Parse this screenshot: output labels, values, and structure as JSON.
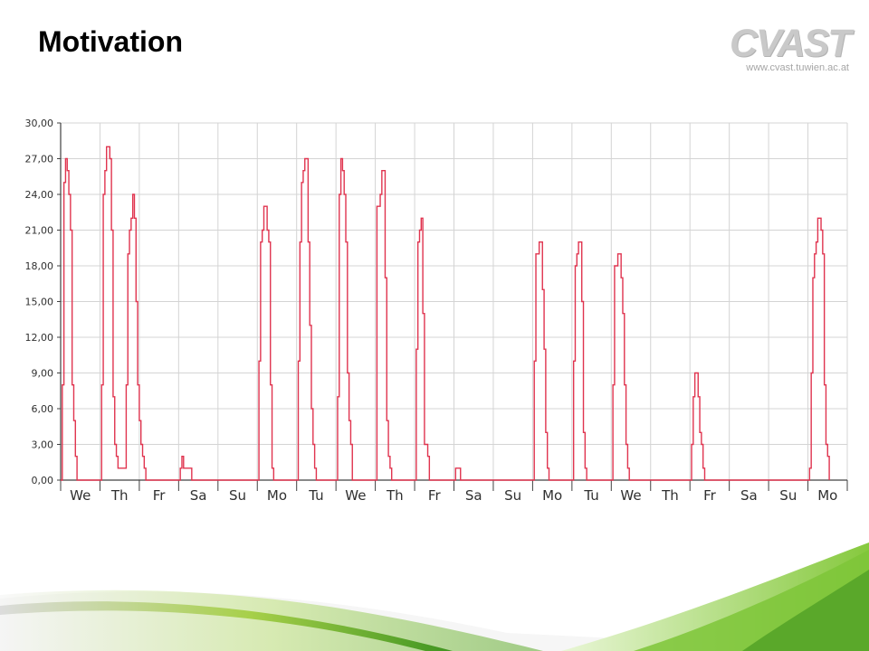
{
  "slide": {
    "title": "Motivation"
  },
  "logo": {
    "wordmark": "CVAST",
    "url": "www.cvast.tuwien.ac.at"
  },
  "colors": {
    "line": "#e0344f",
    "grid": "#d4d4d4",
    "axis": "#404040",
    "accent_green": "#7ec638"
  },
  "chart_data": {
    "type": "line",
    "title": "",
    "xlabel": "",
    "ylabel": "",
    "ylim": [
      0,
      30
    ],
    "grid": true,
    "legend": "none",
    "y_ticks": [
      "0,00",
      "3,00",
      "6,00",
      "9,00",
      "12,00",
      "15,00",
      "18,00",
      "21,00",
      "24,00",
      "27,00",
      "30,00"
    ],
    "x_ticks": [
      "We",
      "Th",
      "Fr",
      "Sa",
      "Su",
      "Mo",
      "Tu",
      "We",
      "Th",
      "Fr",
      "Sa",
      "Su",
      "Mo",
      "Tu",
      "We",
      "Th",
      "Fr",
      "Sa",
      "Su",
      "Mo"
    ],
    "x_unit": "hour since start of first day (day index = floor(x/24))",
    "series": [
      {
        "points": [
          [
            0,
            0
          ],
          [
            1,
            0
          ],
          [
            1,
            8
          ],
          [
            2,
            8
          ],
          [
            2,
            25
          ],
          [
            3,
            25
          ],
          [
            3,
            27
          ],
          [
            4,
            27
          ],
          [
            4,
            26
          ],
          [
            5,
            26
          ],
          [
            5,
            24
          ],
          [
            6,
            24
          ],
          [
            6,
            21
          ],
          [
            7,
            21
          ],
          [
            7,
            8
          ],
          [
            8,
            8
          ],
          [
            8,
            5
          ],
          [
            9,
            5
          ],
          [
            9,
            2
          ],
          [
            10,
            2
          ],
          [
            10,
            0
          ],
          [
            24,
            0
          ],
          [
            25,
            0
          ],
          [
            25,
            8
          ],
          [
            26,
            8
          ],
          [
            26,
            24
          ],
          [
            27,
            24
          ],
          [
            27,
            26
          ],
          [
            28,
            26
          ],
          [
            28,
            28
          ],
          [
            29,
            28
          ],
          [
            29,
            28
          ],
          [
            30,
            28
          ],
          [
            30,
            27
          ],
          [
            31,
            27
          ],
          [
            31,
            21
          ],
          [
            32,
            21
          ],
          [
            32,
            7
          ],
          [
            33,
            7
          ],
          [
            33,
            3
          ],
          [
            34,
            3
          ],
          [
            34,
            2
          ],
          [
            35,
            2
          ],
          [
            35,
            1
          ],
          [
            40,
            1
          ],
          [
            40,
            8
          ],
          [
            41,
            8
          ],
          [
            41,
            19
          ],
          [
            42,
            19
          ],
          [
            42,
            21
          ],
          [
            43,
            21
          ],
          [
            43,
            22
          ],
          [
            44,
            22
          ],
          [
            44,
            24
          ],
          [
            45,
            24
          ],
          [
            45,
            22
          ],
          [
            46,
            22
          ],
          [
            46,
            15
          ],
          [
            47,
            15
          ],
          [
            47,
            8
          ],
          [
            48,
            8
          ],
          [
            48,
            5
          ],
          [
            49,
            5
          ],
          [
            49,
            3
          ],
          [
            50,
            3
          ],
          [
            50,
            2
          ],
          [
            51,
            2
          ],
          [
            51,
            1
          ],
          [
            52,
            1
          ],
          [
            52,
            0
          ],
          [
            72,
            0
          ],
          [
            73,
            0
          ],
          [
            73,
            1
          ],
          [
            74,
            1
          ],
          [
            74,
            2
          ],
          [
            75,
            2
          ],
          [
            75,
            1
          ],
          [
            80,
            1
          ],
          [
            80,
            0
          ],
          [
            120,
            0
          ],
          [
            121,
            0
          ],
          [
            121,
            10
          ],
          [
            122,
            10
          ],
          [
            122,
            20
          ],
          [
            123,
            20
          ],
          [
            123,
            21
          ],
          [
            124,
            21
          ],
          [
            124,
            23
          ],
          [
            125,
            23
          ],
          [
            125,
            23
          ],
          [
            126,
            23
          ],
          [
            126,
            21
          ],
          [
            127,
            21
          ],
          [
            127,
            20
          ],
          [
            128,
            20
          ],
          [
            128,
            8
          ],
          [
            129,
            8
          ],
          [
            129,
            1
          ],
          [
            130,
            1
          ],
          [
            130,
            0
          ],
          [
            144,
            0
          ],
          [
            145,
            0
          ],
          [
            145,
            10
          ],
          [
            146,
            10
          ],
          [
            146,
            20
          ],
          [
            147,
            20
          ],
          [
            147,
            25
          ],
          [
            148,
            25
          ],
          [
            148,
            26
          ],
          [
            149,
            26
          ],
          [
            149,
            27
          ],
          [
            150,
            27
          ],
          [
            150,
            27
          ],
          [
            151,
            27
          ],
          [
            151,
            20
          ],
          [
            152,
            20
          ],
          [
            152,
            13
          ],
          [
            153,
            13
          ],
          [
            153,
            6
          ],
          [
            154,
            6
          ],
          [
            154,
            3
          ],
          [
            155,
            3
          ],
          [
            155,
            1
          ],
          [
            156,
            1
          ],
          [
            156,
            0
          ],
          [
            168,
            0
          ],
          [
            169,
            0
          ],
          [
            169,
            7
          ],
          [
            170,
            7
          ],
          [
            170,
            24
          ],
          [
            171,
            24
          ],
          [
            171,
            27
          ],
          [
            172,
            27
          ],
          [
            172,
            26
          ],
          [
            173,
            26
          ],
          [
            173,
            24
          ],
          [
            174,
            24
          ],
          [
            174,
            20
          ],
          [
            175,
            20
          ],
          [
            175,
            9
          ],
          [
            176,
            9
          ],
          [
            176,
            5
          ],
          [
            177,
            5
          ],
          [
            177,
            3
          ],
          [
            178,
            3
          ],
          [
            178,
            0
          ],
          [
            192,
            0
          ],
          [
            193,
            0
          ],
          [
            193,
            23
          ],
          [
            194,
            23
          ],
          [
            194,
            23
          ],
          [
            195,
            23
          ],
          [
            195,
            24
          ],
          [
            196,
            24
          ],
          [
            196,
            26
          ],
          [
            197,
            26
          ],
          [
            197,
            26
          ],
          [
            198,
            26
          ],
          [
            198,
            17
          ],
          [
            199,
            17
          ],
          [
            199,
            5
          ],
          [
            200,
            5
          ],
          [
            200,
            2
          ],
          [
            201,
            2
          ],
          [
            201,
            1
          ],
          [
            202,
            1
          ],
          [
            202,
            0
          ],
          [
            216,
            0
          ],
          [
            217,
            0
          ],
          [
            217,
            11
          ],
          [
            218,
            11
          ],
          [
            218,
            20
          ],
          [
            219,
            20
          ],
          [
            219,
            21
          ],
          [
            220,
            21
          ],
          [
            220,
            22
          ],
          [
            221,
            22
          ],
          [
            221,
            14
          ],
          [
            222,
            14
          ],
          [
            222,
            3
          ],
          [
            223,
            3
          ],
          [
            223,
            3
          ],
          [
            224,
            3
          ],
          [
            224,
            2
          ],
          [
            225,
            2
          ],
          [
            225,
            0
          ],
          [
            240,
            0
          ],
          [
            241,
            0
          ],
          [
            241,
            1
          ],
          [
            244,
            1
          ],
          [
            244,
            0
          ],
          [
            288,
            0
          ],
          [
            289,
            0
          ],
          [
            289,
            10
          ],
          [
            290,
            10
          ],
          [
            290,
            19
          ],
          [
            291,
            19
          ],
          [
            291,
            19
          ],
          [
            292,
            19
          ],
          [
            292,
            20
          ],
          [
            293,
            20
          ],
          [
            293,
            20
          ],
          [
            294,
            20
          ],
          [
            294,
            16
          ],
          [
            295,
            16
          ],
          [
            295,
            11
          ],
          [
            296,
            11
          ],
          [
            296,
            4
          ],
          [
            297,
            4
          ],
          [
            297,
            1
          ],
          [
            298,
            1
          ],
          [
            298,
            0
          ],
          [
            312,
            0
          ],
          [
            313,
            0
          ],
          [
            313,
            10
          ],
          [
            314,
            10
          ],
          [
            314,
            18
          ],
          [
            315,
            18
          ],
          [
            315,
            19
          ],
          [
            316,
            19
          ],
          [
            316,
            20
          ],
          [
            317,
            20
          ],
          [
            317,
            20
          ],
          [
            318,
            20
          ],
          [
            318,
            15
          ],
          [
            319,
            15
          ],
          [
            319,
            4
          ],
          [
            320,
            4
          ],
          [
            320,
            1
          ],
          [
            321,
            1
          ],
          [
            321,
            0
          ],
          [
            336,
            0
          ],
          [
            337,
            0
          ],
          [
            337,
            8
          ],
          [
            338,
            8
          ],
          [
            338,
            18
          ],
          [
            339,
            18
          ],
          [
            339,
            18
          ],
          [
            340,
            18
          ],
          [
            340,
            19
          ],
          [
            341,
            19
          ],
          [
            341,
            19
          ],
          [
            342,
            19
          ],
          [
            342,
            17
          ],
          [
            343,
            17
          ],
          [
            343,
            14
          ],
          [
            344,
            14
          ],
          [
            344,
            8
          ],
          [
            345,
            8
          ],
          [
            345,
            3
          ],
          [
            346,
            3
          ],
          [
            346,
            1
          ],
          [
            347,
            1
          ],
          [
            347,
            0
          ],
          [
            384,
            0
          ],
          [
            385,
            0
          ],
          [
            385,
            3
          ],
          [
            386,
            3
          ],
          [
            386,
            7
          ],
          [
            387,
            7
          ],
          [
            387,
            9
          ],
          [
            388,
            9
          ],
          [
            388,
            9
          ],
          [
            389,
            9
          ],
          [
            389,
            7
          ],
          [
            390,
            7
          ],
          [
            390,
            4
          ],
          [
            391,
            4
          ],
          [
            391,
            3
          ],
          [
            392,
            3
          ],
          [
            392,
            1
          ],
          [
            393,
            1
          ],
          [
            393,
            0
          ],
          [
            456,
            0
          ],
          [
            457,
            0
          ],
          [
            457,
            1
          ],
          [
            458,
            1
          ],
          [
            458,
            9
          ],
          [
            459,
            9
          ],
          [
            459,
            17
          ],
          [
            460,
            17
          ],
          [
            460,
            19
          ],
          [
            461,
            19
          ],
          [
            461,
            20
          ],
          [
            462,
            20
          ],
          [
            462,
            22
          ],
          [
            463,
            22
          ],
          [
            463,
            22
          ],
          [
            464,
            22
          ],
          [
            464,
            21
          ],
          [
            465,
            21
          ],
          [
            465,
            19
          ],
          [
            466,
            19
          ],
          [
            466,
            8
          ],
          [
            467,
            8
          ],
          [
            467,
            3
          ],
          [
            468,
            3
          ],
          [
            468,
            2
          ],
          [
            469,
            2
          ],
          [
            469,
            0
          ]
        ]
      }
    ]
  }
}
